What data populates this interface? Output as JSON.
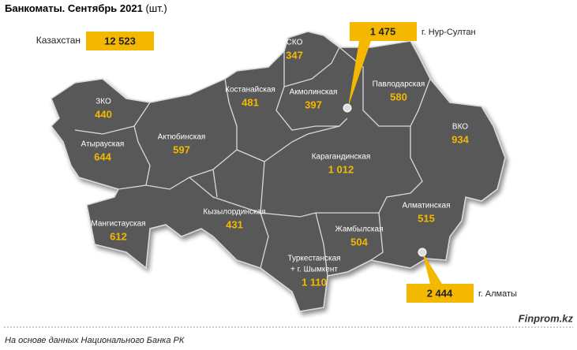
{
  "title": "Банкоматы. Сентябрь 2021",
  "unit": "(шт.)",
  "total": {
    "label": "Казахстан",
    "value": "12 523"
  },
  "regions": [
    {
      "name": [
        "ЗКО"
      ],
      "value": "440"
    },
    {
      "name": [
        "Атырауская"
      ],
      "value": "644"
    },
    {
      "name": [
        "Мангистауская"
      ],
      "value": "612"
    },
    {
      "name": [
        "Актюбинская"
      ],
      "value": "597"
    },
    {
      "name": [
        "Костанайская"
      ],
      "value": "481"
    },
    {
      "name": [
        "СКО"
      ],
      "value": "347"
    },
    {
      "name": [
        "Акмолинская"
      ],
      "value": "397"
    },
    {
      "name": [
        "Павлодарская"
      ],
      "value": "580"
    },
    {
      "name": [
        "ВКО"
      ],
      "value": "934"
    },
    {
      "name": [
        "Карагандинская"
      ],
      "value": "1 012"
    },
    {
      "name": [
        "Кызылординская"
      ],
      "value": "431"
    },
    {
      "name": [
        "Жамбылская"
      ],
      "value": "504"
    },
    {
      "name": [
        "Алматинская"
      ],
      "value": "515"
    },
    {
      "name": [
        "Туркестанская",
        "+ г. Шымкент"
      ],
      "value": "1 110"
    }
  ],
  "cities": [
    {
      "name": "г. Нур-Султан",
      "value": "1 475"
    },
    {
      "name": "г. Алматы",
      "value": "2 444"
    }
  ],
  "footer": {
    "source": "На основе данных Национального Банка РК",
    "brand": "Finprom.kz"
  }
}
